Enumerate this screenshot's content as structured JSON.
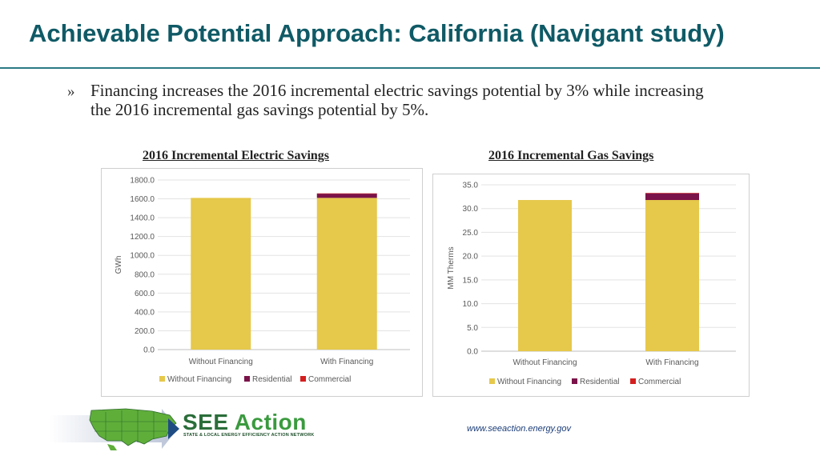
{
  "slide": {
    "title": "Achievable Potential Approach: California (Navigant study)",
    "bullet_mark": "»",
    "bullet_text": "Financing increases the 2016  incremental electric savings potential by 3% while increasing the 2016 incremental gas savings potential by 5%.",
    "url": "www.seeaction.energy.gov",
    "logo": {
      "word_a": "SEE",
      "word_b": "Action",
      "tagline": "STATE & LOCAL ENERGY EFFICIENCY ACTION NETWORK"
    }
  },
  "colors": {
    "title": "#0f5a66",
    "without_financing": "#e6c84b",
    "residential": "#7a1349",
    "commercial": "#d41f1f",
    "logo_green": "#2b6d3a"
  },
  "chart_data": [
    {
      "type": "bar",
      "stacked": true,
      "title": "2016 Incremental Electric Savings",
      "ylabel": "GWh",
      "xlabel": "",
      "ylim": [
        0,
        1800
      ],
      "yticks": [
        0,
        200,
        400,
        600,
        800,
        1000,
        1200,
        1400,
        1600,
        1800
      ],
      "tick_decimals": 1,
      "categories": [
        "Without Financing",
        "With Financing"
      ],
      "series": [
        {
          "name": "Without Financing",
          "color": "#e6c84b",
          "values": [
            1610,
            1610
          ]
        },
        {
          "name": "Residential",
          "color": "#7a1349",
          "values": [
            0,
            45
          ]
        },
        {
          "name": "Commercial",
          "color": "#d41f1f",
          "values": [
            0,
            3
          ]
        }
      ],
      "legend_position": "bottom",
      "grid": true
    },
    {
      "type": "bar",
      "stacked": true,
      "title": "2016 Incremental Gas Savings",
      "ylabel": "MM Therms",
      "xlabel": "",
      "ylim": [
        0,
        35
      ],
      "yticks": [
        0,
        5,
        10,
        15,
        20,
        25,
        30,
        35
      ],
      "tick_decimals": 1,
      "categories": [
        "Without Financing",
        "With Financing"
      ],
      "series": [
        {
          "name": "Without Financing",
          "color": "#e6c84b",
          "values": [
            31.8,
            31.8
          ]
        },
        {
          "name": "Residential",
          "color": "#7a1349",
          "values": [
            0,
            1.4
          ]
        },
        {
          "name": "Commercial",
          "color": "#d41f1f",
          "values": [
            0,
            0.1
          ]
        }
      ],
      "legend_position": "bottom",
      "grid": true
    }
  ]
}
